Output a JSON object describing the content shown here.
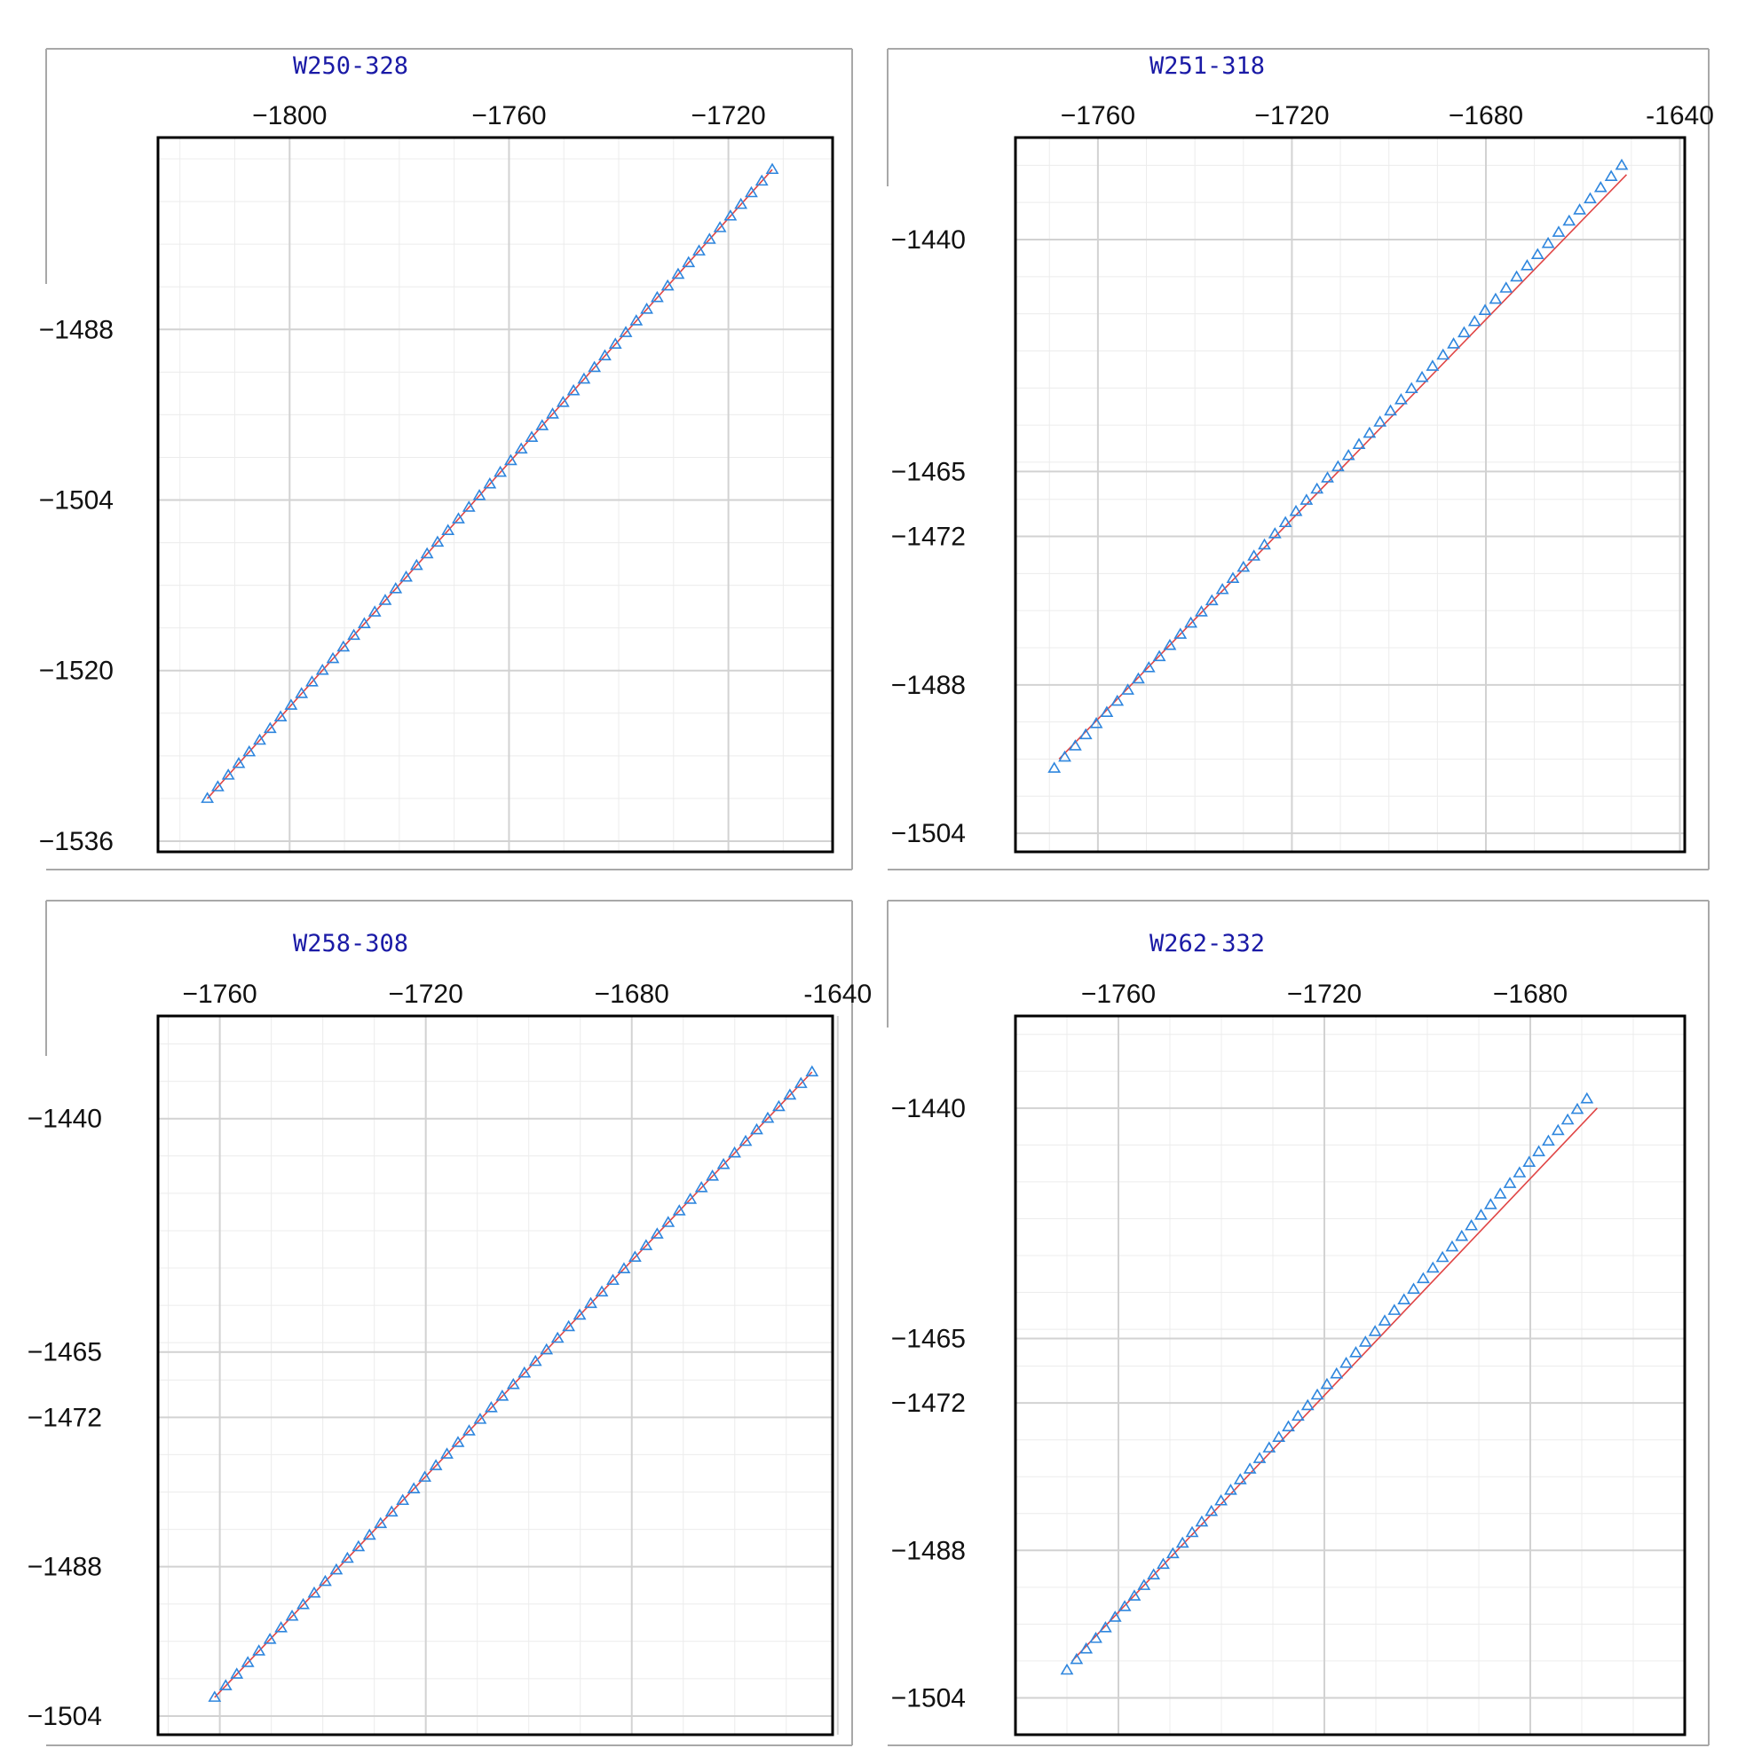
{
  "chart_data": [
    {
      "type": "scatter",
      "title": "W250-328",
      "xlim": [
        -1824,
        -1701
      ],
      "ylim": [
        -1537,
        -1470
      ],
      "xticks": [
        -1800,
        -1760,
        -1720
      ],
      "xtick_labels": [
        "−1800",
        "−1760",
        "−1720"
      ],
      "yticks": [
        -1488,
        -1504,
        -1520,
        -1536
      ],
      "ytick_labels": [
        "−1488",
        "−1504",
        "−1520",
        "−1536"
      ],
      "grid": true,
      "xaxis_position": "top",
      "series": [
        {
          "marker": "triangle",
          "start": [
            -1815,
            -1532
          ],
          "end": [
            -1712,
            -1473
          ],
          "n_points": 55,
          "color": "#2e86de"
        },
        {
          "line": "fit",
          "start": [
            -1815,
            -1532
          ],
          "end": [
            -1712,
            -1473
          ],
          "color": "#e04545"
        }
      ]
    },
    {
      "type": "scatter",
      "title": "W251-318",
      "xlim": [
        -1777,
        -1639
      ],
      "ylim": [
        -1506,
        -1429
      ],
      "xticks": [
        -1760,
        -1720,
        -1680,
        -1640
      ],
      "xtick_labels": [
        "−1760",
        "−1720",
        "−1680",
        "-1640"
      ],
      "yticks": [
        -1440,
        -1465,
        -1472,
        -1488,
        -1504
      ],
      "ytick_labels": [
        "−1440",
        "−1465",
        "−1472",
        "−1488",
        "−1504"
      ],
      "grid": true,
      "xaxis_position": "top",
      "series": [
        {
          "marker": "triangle",
          "start": [
            -1769,
            -1497
          ],
          "end": [
            -1652,
            -1432
          ],
          "n_points": 55,
          "color": "#2e86de"
        },
        {
          "line": "fit",
          "start": [
            -1768,
            -1496
          ],
          "end": [
            -1651,
            -1433
          ],
          "color": "#e04545"
        }
      ]
    },
    {
      "type": "scatter",
      "title": "W258-308",
      "xlim": [
        -1772,
        -1641
      ],
      "ylim": [
        -1506,
        -1429
      ],
      "xticks": [
        -1760,
        -1720,
        -1680,
        -1640
      ],
      "xtick_labels": [
        "−1760",
        "−1720",
        "−1680",
        "-1640"
      ],
      "yticks": [
        -1440,
        -1465,
        -1472,
        -1488,
        -1504
      ],
      "ytick_labels": [
        "−1440",
        "−1465",
        "−1472",
        "−1488",
        "−1504"
      ],
      "grid": true,
      "xaxis_position": "top",
      "series": [
        {
          "marker": "triangle",
          "start": [
            -1761,
            -1502
          ],
          "end": [
            -1645,
            -1435
          ],
          "n_points": 55,
          "color": "#2e86de"
        },
        {
          "line": "fit",
          "start": [
            -1761,
            -1502
          ],
          "end": [
            -1645,
            -1435
          ],
          "color": "#e04545"
        }
      ]
    },
    {
      "type": "scatter",
      "title": "W262-332",
      "xlim": [
        -1780,
        -1650
      ],
      "ylim": [
        -1508,
        -1430
      ],
      "xticks": [
        -1760,
        -1720,
        -1680
      ],
      "xtick_labels": [
        "−1760",
        "−1720",
        "−1680"
      ],
      "yticks": [
        -1440,
        -1465,
        -1472,
        -1488,
        -1504
      ],
      "ytick_labels": [
        "−1440",
        "−1465",
        "−1472",
        "−1488",
        "−1504"
      ],
      "grid": true,
      "xaxis_position": "top",
      "series": [
        {
          "marker": "triangle",
          "start": [
            -1770,
            -1501
          ],
          "end": [
            -1669,
            -1439
          ],
          "n_points": 55,
          "color": "#2e86de"
        },
        {
          "line": "fit",
          "start": [
            -1769,
            -1500
          ],
          "end": [
            -1667,
            -1440
          ],
          "color": "#e04545"
        }
      ]
    }
  ]
}
